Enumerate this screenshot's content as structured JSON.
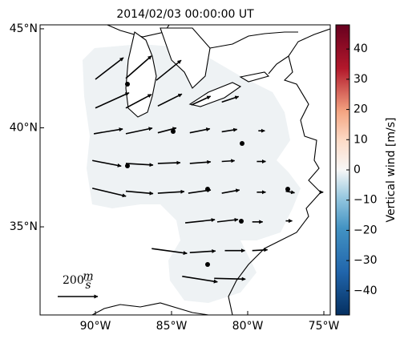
{
  "chart_data": {
    "type": "vector-map",
    "title": "2014/02/03 00:00:00 UT",
    "xlim": [
      -93.63,
      -74.58
    ],
    "ylim": [
      30.55,
      45.2
    ],
    "xticks": [
      {
        "value": -90,
        "label": "90°W"
      },
      {
        "value": -85,
        "label": "85°W"
      },
      {
        "value": -80,
        "label": "80°W"
      },
      {
        "value": -75,
        "label": "75°W"
      }
    ],
    "yticks": [
      {
        "value": 35,
        "label": "35°N"
      },
      {
        "value": 40,
        "label": "40°N"
      },
      {
        "value": 45,
        "label": "45°N"
      }
    ],
    "arrow_color": "#000000",
    "vectors": [
      {
        "lon": -90.0,
        "lat": 42.45,
        "u": 140,
        "v": 108
      },
      {
        "lon": -88.0,
        "lat": 42.5,
        "u": 128,
        "v": 112
      },
      {
        "lon": -86.0,
        "lat": 42.4,
        "u": 124,
        "v": 100
      },
      {
        "lon": -90.0,
        "lat": 41.0,
        "u": 168,
        "v": 76
      },
      {
        "lon": -88.0,
        "lat": 41.0,
        "u": 128,
        "v": 68
      },
      {
        "lon": -85.9,
        "lat": 41.1,
        "u": 120,
        "v": 60
      },
      {
        "lon": -83.7,
        "lat": 41.15,
        "u": 96,
        "v": 44
      },
      {
        "lon": -81.7,
        "lat": 41.3,
        "u": 84,
        "v": 28
      },
      {
        "lon": -90.1,
        "lat": 39.7,
        "u": 144,
        "v": 24
      },
      {
        "lon": -88.0,
        "lat": 39.7,
        "u": 132,
        "v": 28
      },
      {
        "lon": -85.9,
        "lat": 39.75,
        "u": 92,
        "v": 24
      },
      {
        "lon": -83.8,
        "lat": 39.75,
        "u": 100,
        "v": 20
      },
      {
        "lon": -81.7,
        "lat": 39.8,
        "u": 76,
        "v": 12
      },
      {
        "lon": -79.3,
        "lat": 39.85,
        "u": 32,
        "v": 0
      },
      {
        "lon": -90.2,
        "lat": 38.35,
        "u": 144,
        "v": -28
      },
      {
        "lon": -88.0,
        "lat": 38.2,
        "u": 136,
        "v": -8
      },
      {
        "lon": -85.9,
        "lat": 38.2,
        "u": 112,
        "v": 4
      },
      {
        "lon": -83.8,
        "lat": 38.2,
        "u": 104,
        "v": 8
      },
      {
        "lon": -81.7,
        "lat": 38.3,
        "u": 64,
        "v": 4
      },
      {
        "lon": -79.4,
        "lat": 38.3,
        "u": 44,
        "v": 0
      },
      {
        "lon": -90.2,
        "lat": 36.95,
        "u": 168,
        "v": -40
      },
      {
        "lon": -88.0,
        "lat": 36.8,
        "u": 136,
        "v": -12
      },
      {
        "lon": -85.9,
        "lat": 36.7,
        "u": 132,
        "v": 8
      },
      {
        "lon": -83.9,
        "lat": 36.7,
        "u": 112,
        "v": 16
      },
      {
        "lon": -81.7,
        "lat": 36.7,
        "u": 88,
        "v": 16
      },
      {
        "lon": -79.4,
        "lat": 36.75,
        "u": 44,
        "v": 0
      },
      {
        "lon": -77.5,
        "lat": 36.8,
        "u": 44,
        "v": -8
      },
      {
        "lon": -75.2,
        "lat": 36.75,
        "u": 12,
        "v": 0
      },
      {
        "lon": -84.1,
        "lat": 35.2,
        "u": 148,
        "v": 16
      },
      {
        "lon": -82.0,
        "lat": 35.25,
        "u": 104,
        "v": 12
      },
      {
        "lon": -79.7,
        "lat": 35.25,
        "u": 52,
        "v": 0
      },
      {
        "lon": -77.5,
        "lat": 35.3,
        "u": 32,
        "v": 0
      },
      {
        "lon": -86.3,
        "lat": 33.9,
        "u": 176,
        "v": -24
      },
      {
        "lon": -83.8,
        "lat": 33.7,
        "u": 128,
        "v": 8
      },
      {
        "lon": -81.5,
        "lat": 33.8,
        "u": 100,
        "v": 0
      },
      {
        "lon": -79.7,
        "lat": 33.8,
        "u": 76,
        "v": 4
      },
      {
        "lon": -84.3,
        "lat": 32.5,
        "u": 176,
        "v": -28
      },
      {
        "lon": -82.2,
        "lat": 32.4,
        "u": 156,
        "v": -4
      }
    ],
    "scale_value": 200,
    "scale_unit_num": "m",
    "scale_unit_den": "s",
    "colorbar_label": "Vertical wind [m/s]",
    "colorbar_lim": [
      -48,
      48
    ],
    "colorbar_ticks": [
      {
        "value": -40,
        "label": "−40"
      },
      {
        "value": -30,
        "label": "−30"
      },
      {
        "value": -20,
        "label": "−20"
      },
      {
        "value": -10,
        "label": "−10"
      },
      0,
      10,
      20,
      30,
      40
    ]
  }
}
